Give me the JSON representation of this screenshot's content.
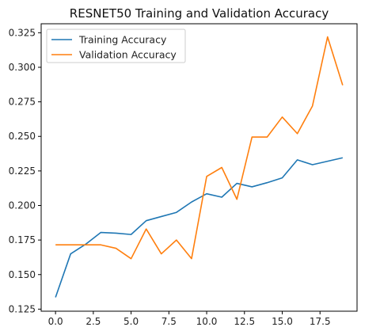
{
  "chart_data": {
    "type": "line",
    "title": "RESNET50 Training and Validation Accuracy",
    "xlabel": "",
    "ylabel": "",
    "xlim": [
      -0.95,
      19.95
    ],
    "ylim": [
      0.1235,
      0.3315
    ],
    "x_ticks": [
      0.0,
      2.5,
      5.0,
      7.5,
      10.0,
      12.5,
      15.0,
      17.5
    ],
    "x_tick_labels": [
      "0.0",
      "2.5",
      "5.0",
      "7.5",
      "10.0",
      "12.5",
      "15.0",
      "17.5"
    ],
    "y_ticks": [
      0.125,
      0.15,
      0.175,
      0.2,
      0.225,
      0.25,
      0.275,
      0.3,
      0.325
    ],
    "y_tick_labels": [
      "0.125",
      "0.150",
      "0.175",
      "0.200",
      "0.225",
      "0.250",
      "0.275",
      "0.300",
      "0.325"
    ],
    "grid": false,
    "legend_position": "top-left",
    "x": [
      0,
      1,
      2,
      3,
      4,
      5,
      6,
      7,
      8,
      9,
      10,
      11,
      12,
      13,
      14,
      15,
      16,
      17,
      18,
      19
    ],
    "series": [
      {
        "name": "Training Accuracy",
        "color": "#1f77b4",
        "values": [
          0.1335,
          0.165,
          0.172,
          0.1805,
          0.18,
          0.179,
          0.189,
          0.192,
          0.195,
          0.2025,
          0.2085,
          0.206,
          0.216,
          0.2135,
          0.2165,
          0.22,
          0.233,
          0.2295,
          0.232,
          0.2345
        ]
      },
      {
        "name": "Validation Accuracy",
        "color": "#ff7f0e",
        "values": [
          0.1715,
          0.1715,
          0.1715,
          0.1715,
          0.169,
          0.1615,
          0.183,
          0.165,
          0.175,
          0.1615,
          0.221,
          0.2275,
          0.2045,
          0.2495,
          0.2495,
          0.264,
          0.252,
          0.272,
          0.322,
          0.287
        ]
      }
    ]
  }
}
